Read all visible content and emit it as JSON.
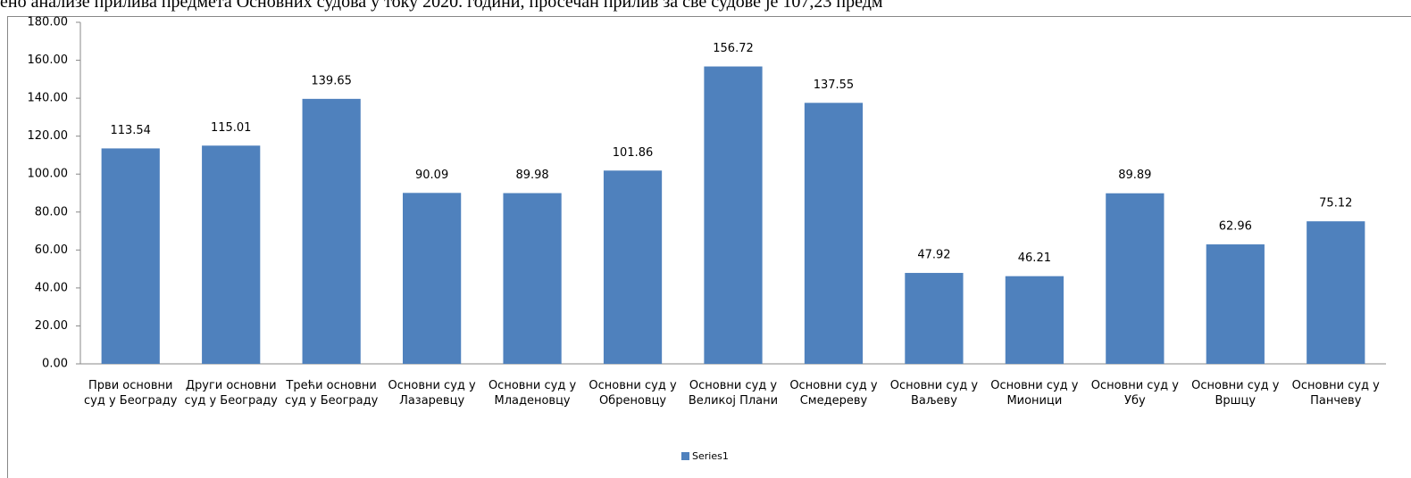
{
  "chart_data": {
    "type": "bar",
    "title": "ено анализе прилива предмета Основних судова у току 2020. години, просечан прилив за све судове је 107,23 предм",
    "categories": [
      "Први основни суд у Београду",
      "Други основни суд у Београду",
      "Трећи основни суд у Београду",
      "Основни суд у Лазаревцу",
      "Основни суд у Младеновцу",
      "Основни суд у Обреновцу",
      "Основни суд у Великој Плани",
      "Основни суд у Смедереву",
      "Основни суд у Ваљеву",
      "Основни суд у Мионици",
      "Основни суд у Убу",
      "Основни суд у Вршцу",
      "Основни суд у Панчеву"
    ],
    "series": [
      {
        "name": "Series1",
        "color": "#4f81bd",
        "values": [
          113.54,
          115.01,
          139.65,
          90.09,
          89.98,
          101.86,
          156.72,
          137.55,
          47.92,
          46.21,
          89.89,
          62.96,
          75.12
        ]
      }
    ],
    "ylim": [
      0,
      180
    ],
    "yticks": [
      {
        "value": 0,
        "label": "0.00"
      },
      {
        "value": 20,
        "label": "20.00"
      },
      {
        "value": 40,
        "label": "40.00"
      },
      {
        "value": 60,
        "label": "60.00"
      },
      {
        "value": 80,
        "label": "80.00"
      },
      {
        "value": 100,
        "label": "100.00"
      },
      {
        "value": 120,
        "label": "120.00"
      },
      {
        "value": 140,
        "label": "140.00"
      },
      {
        "value": 160,
        "label": "160.00"
      },
      {
        "value": 180,
        "label": "180.00"
      }
    ],
    "legend": "bottom"
  }
}
